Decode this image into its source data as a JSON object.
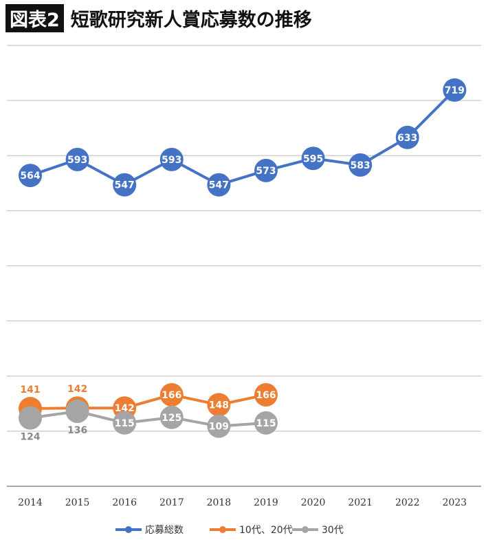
{
  "title_badge": "図表2",
  "title": "短歌研究新人賞応募数の推移",
  "chart_data": {
    "type": "line",
    "title": "短歌研究新人賞応募数の推移",
    "categories": [
      "2014",
      "2015",
      "2016",
      "2017",
      "2018",
      "2019",
      "2020",
      "2021",
      "2022",
      "2023"
    ],
    "ylim": [
      0,
      800
    ],
    "grid": true,
    "legend": "bottom",
    "series": [
      {
        "name": "応募総数",
        "color": "#4472C4",
        "values": [
          564,
          593,
          547,
          593,
          547,
          573,
          595,
          583,
          633,
          719
        ]
      },
      {
        "name": "10代、20代",
        "color": "#ED7D31",
        "values": [
          141,
          142,
          142,
          166,
          148,
          166,
          null,
          null,
          null,
          null
        ]
      },
      {
        "name": "30代",
        "color": "#A5A5A5",
        "values": [
          124,
          136,
          115,
          125,
          109,
          115,
          null,
          null,
          null,
          null
        ]
      }
    ]
  }
}
